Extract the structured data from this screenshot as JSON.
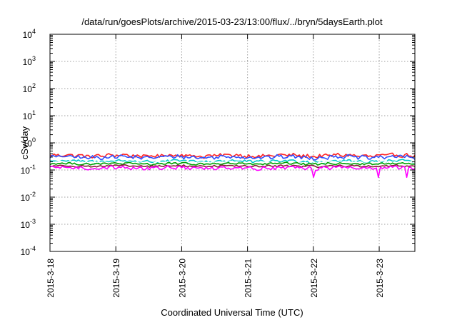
{
  "chart_data": {
    "type": "line",
    "title": "/data/run/goesPlots/archive/2015-03-23/13:00/flux/../bryn/5daysEarth.plot",
    "xlabel": "Coordinated Universal Time (UTC)",
    "ylabel": "cSv/day",
    "yscale": "log",
    "ylim": [
      0.0001,
      10000
    ],
    "y_ticks": [
      {
        "value": 0.0001,
        "base": "10",
        "exp": "-4"
      },
      {
        "value": 0.001,
        "base": "10",
        "exp": "-3"
      },
      {
        "value": 0.01,
        "base": "10",
        "exp": "-2"
      },
      {
        "value": 0.1,
        "base": "10",
        "exp": "-1"
      },
      {
        "value": 1,
        "base": "10",
        "exp": "0"
      },
      {
        "value": 10,
        "base": "10",
        "exp": "1"
      },
      {
        "value": 100,
        "base": "10",
        "exp": "2"
      },
      {
        "value": 1000,
        "base": "10",
        "exp": "3"
      },
      {
        "value": 10000,
        "base": "10",
        "exp": "4"
      }
    ],
    "x_start": "2015-03-18T00:00",
    "x_end": "2015-03-23T13:00",
    "x_ticks": [
      "2015-3-18",
      "2015-3-19",
      "2015-3-20",
      "2015-3-21",
      "2015-3-22",
      "2015-3-23"
    ],
    "x_tick_times": [
      "2015-03-18T00:00",
      "2015-03-19T00:00",
      "2015-03-20T00:00",
      "2015-03-21T00:00",
      "2015-03-22T00:00",
      "2015-03-23T00:00"
    ],
    "grid": true,
    "legend": "none",
    "series": [
      {
        "color": "#ff2020",
        "mean": 0.34,
        "amp": 0.18
      },
      {
        "color": "#3050ff",
        "mean": 0.3,
        "amp": 0.18
      },
      {
        "color": "#00c8c8",
        "mean": 0.21,
        "amp": 0.14
      },
      {
        "color": "#ffffff",
        "mean": 0.19,
        "amp": 0.1
      },
      {
        "color": "#00a000",
        "mean": 0.17,
        "amp": 0.1
      },
      {
        "color": "#8a1a3a",
        "mean": 0.14,
        "amp": 0.09
      },
      {
        "color": "#ff00ff",
        "mean": 0.12,
        "amp": 0.16
      }
    ]
  }
}
